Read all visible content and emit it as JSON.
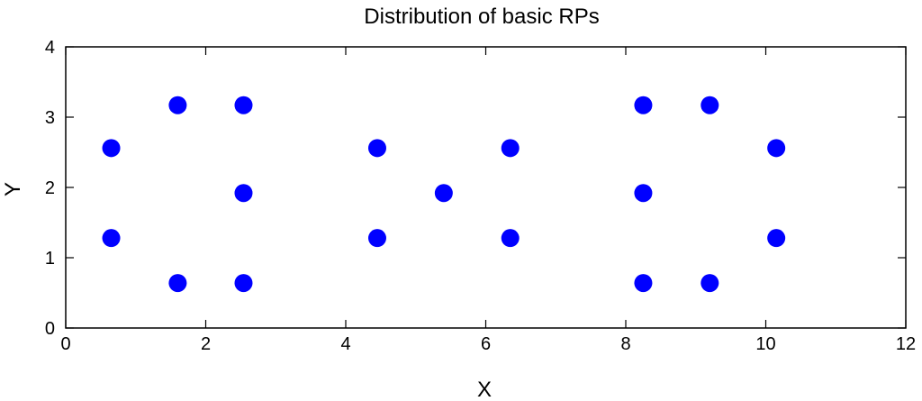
{
  "chart_data": {
    "type": "scatter",
    "title": "Distribution of basic RPs",
    "xlabel": "X",
    "ylabel": "Y",
    "xlim": [
      0,
      12
    ],
    "ylim": [
      0,
      4
    ],
    "xticks": [
      0,
      2,
      4,
      6,
      8,
      10,
      12
    ],
    "yticks": [
      0,
      1,
      2,
      3,
      4
    ],
    "grid": false,
    "marker_color": "#0000ff",
    "points": [
      {
        "x": 0.65,
        "y": 1.28
      },
      {
        "x": 0.65,
        "y": 2.56
      },
      {
        "x": 1.6,
        "y": 0.64
      },
      {
        "x": 1.6,
        "y": 3.17
      },
      {
        "x": 2.54,
        "y": 0.64
      },
      {
        "x": 2.54,
        "y": 1.92
      },
      {
        "x": 2.54,
        "y": 3.17
      },
      {
        "x": 4.45,
        "y": 1.28
      },
      {
        "x": 4.45,
        "y": 2.56
      },
      {
        "x": 5.4,
        "y": 1.92
      },
      {
        "x": 6.35,
        "y": 1.28
      },
      {
        "x": 6.35,
        "y": 2.56
      },
      {
        "x": 8.25,
        "y": 0.64
      },
      {
        "x": 8.25,
        "y": 1.92
      },
      {
        "x": 8.25,
        "y": 3.17
      },
      {
        "x": 9.2,
        "y": 0.64
      },
      {
        "x": 9.2,
        "y": 3.17
      },
      {
        "x": 10.15,
        "y": 1.28
      },
      {
        "x": 10.15,
        "y": 2.56
      }
    ]
  }
}
